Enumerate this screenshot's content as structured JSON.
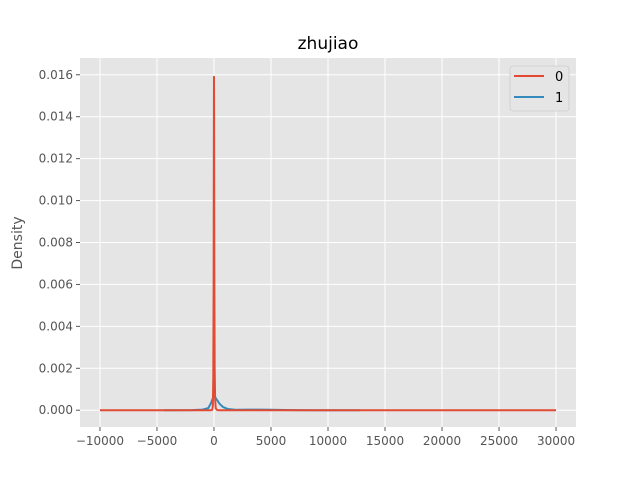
{
  "chart_data": {
    "type": "line",
    "title": "zhujiao",
    "xlabel": "",
    "ylabel": "Density",
    "xlim": [
      -11750,
      31750
    ],
    "ylim": [
      -0.0008,
      0.0168
    ],
    "xticks": [
      -10000,
      -5000,
      0,
      5000,
      10000,
      15000,
      20000,
      25000,
      30000
    ],
    "yticks": [
      0.0,
      0.002,
      0.004,
      0.006,
      0.008,
      0.01,
      0.012,
      0.014,
      0.016
    ],
    "xtick_labels": [
      "−10000",
      "−5000",
      "0",
      "5000",
      "10000",
      "15000",
      "20000",
      "25000",
      "30000"
    ],
    "ytick_labels": [
      "0.000",
      "0.002",
      "0.004",
      "0.006",
      "0.008",
      "0.010",
      "0.012",
      "0.014",
      "0.016"
    ],
    "grid": true,
    "legend_position": "top-right",
    "series": [
      {
        "name": "0",
        "color": "#E24A33",
        "points": [
          [
            -10000,
            0
          ],
          [
            -300,
            0
          ],
          [
            -150,
            2e-05
          ],
          [
            -100,
            0.0002
          ],
          [
            -60,
            0.0015
          ],
          [
            -30,
            0.006
          ],
          [
            -10,
            0.013
          ],
          [
            0,
            0.0159
          ],
          [
            10,
            0.014
          ],
          [
            30,
            0.007
          ],
          [
            60,
            0.002
          ],
          [
            100,
            0.0005
          ],
          [
            150,
            0.0001
          ],
          [
            250,
            2e-05
          ],
          [
            400,
            0
          ],
          [
            30000,
            0
          ]
        ]
      },
      {
        "name": "1",
        "color": "#348ABD",
        "points": [
          [
            -4400,
            0
          ],
          [
            -2000,
            5e-06
          ],
          [
            -1000,
            3e-05
          ],
          [
            -500,
            0.0001
          ],
          [
            -250,
            0.00035
          ],
          [
            -100,
            0.00058
          ],
          [
            0,
            0.00068
          ],
          [
            100,
            0.00063
          ],
          [
            250,
            0.0005
          ],
          [
            500,
            0.0003
          ],
          [
            800,
            0.00015
          ],
          [
            1200,
            6e-05
          ],
          [
            2000,
            2e-05
          ],
          [
            3000,
            3e-05
          ],
          [
            4000,
            3e-05
          ],
          [
            5000,
            2e-05
          ],
          [
            7000,
            5e-06
          ],
          [
            9000,
            2e-06
          ],
          [
            12800,
            0
          ]
        ]
      }
    ]
  }
}
